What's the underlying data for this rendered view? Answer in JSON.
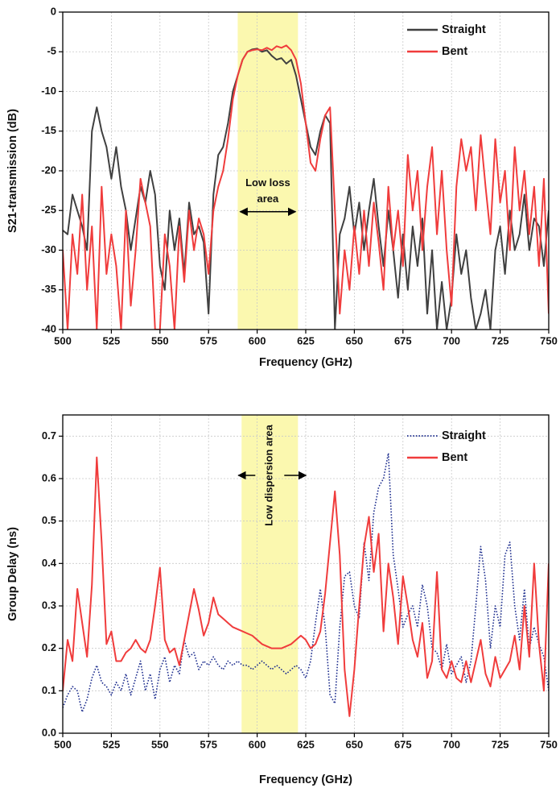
{
  "chart_data": [
    {
      "type": "line",
      "ylabel": "S21-transmission (dB)",
      "xlabel": "Frequency (GHz)",
      "x": [
        500,
        502.5,
        505,
        507.5,
        510,
        512.5,
        515,
        517.5,
        520,
        522.5,
        525,
        527.5,
        530,
        532.5,
        535,
        537.5,
        540,
        542.5,
        545,
        547.5,
        550,
        552.5,
        555,
        557.5,
        560,
        562.5,
        565,
        567.5,
        570,
        572.5,
        575,
        577.5,
        580,
        582.5,
        585,
        587.5,
        590,
        592.5,
        595,
        597.5,
        600,
        602.5,
        605,
        607.5,
        610,
        612.5,
        615,
        617.5,
        620,
        622.5,
        625,
        627.5,
        630,
        632.5,
        635,
        637.5,
        640,
        642.5,
        645,
        647.5,
        650,
        652.5,
        655,
        657.5,
        660,
        662.5,
        665,
        667.5,
        670,
        672.5,
        675,
        677.5,
        680,
        682.5,
        685,
        687.5,
        690,
        692.5,
        695,
        697.5,
        700,
        702.5,
        705,
        707.5,
        710,
        712.5,
        715,
        717.5,
        720,
        722.5,
        725,
        727.5,
        730,
        732.5,
        735,
        737.5,
        740,
        742.5,
        745,
        747.5,
        750
      ],
      "series": [
        {
          "name": "Straight",
          "color": "#404040",
          "dash": "solid",
          "values": [
            -27.5,
            -28,
            -23,
            -25,
            -27,
            -30,
            -15,
            -12,
            -15,
            -17,
            -21,
            -17,
            -22,
            -25,
            -30,
            -26,
            -22,
            -24,
            -20,
            -23,
            -32,
            -35,
            -25,
            -30,
            -26,
            -33,
            -24,
            -28,
            -27,
            -29,
            -38,
            -23,
            -18,
            -17,
            -14,
            -10,
            -8,
            -6,
            -5,
            -4.7,
            -4.6,
            -5,
            -4.8,
            -5.5,
            -6,
            -5.8,
            -6.5,
            -6,
            -8,
            -11,
            -14,
            -17,
            -18,
            -15,
            -13,
            -14,
            -40,
            -28,
            -26,
            -22,
            -28,
            -24,
            -30,
            -25,
            -21,
            -27,
            -32,
            -25,
            -30,
            -36,
            -28,
            -35,
            -27,
            -32,
            -26,
            -38,
            -30,
            -40,
            -34,
            -40,
            -36,
            -28,
            -33,
            -30,
            -36,
            -40,
            -38,
            -35,
            -40,
            -30,
            -27,
            -33,
            -25,
            -30,
            -28,
            -23,
            -30,
            -26,
            -27,
            -32,
            -25
          ]
        },
        {
          "name": "Bent",
          "color": "#f03c3c",
          "dash": "solid",
          "values": [
            -30,
            -40,
            -28,
            -33,
            -23,
            -35,
            -27,
            -40,
            -22,
            -33,
            -28,
            -32,
            -40,
            -25,
            -37,
            -30,
            -21,
            -24,
            -27,
            -40,
            -40,
            -28,
            -32,
            -40,
            -27,
            -34,
            -25,
            -30,
            -26,
            -28,
            -33,
            -25,
            -22,
            -20,
            -16,
            -11,
            -8,
            -6,
            -5,
            -4.8,
            -4.7,
            -4.8,
            -4.5,
            -4.8,
            -4.3,
            -4.5,
            -4.2,
            -4.8,
            -6,
            -9,
            -14,
            -19,
            -20,
            -16,
            -13,
            -12,
            -25,
            -38,
            -30,
            -35,
            -27,
            -33,
            -25,
            -32,
            -24,
            -29,
            -35,
            -22,
            -30,
            -25,
            -32,
            -18,
            -25,
            -20,
            -30,
            -22,
            -17,
            -28,
            -20,
            -30,
            -37,
            -22,
            -16,
            -20,
            -17,
            -25,
            -15.5,
            -22,
            -28,
            -16,
            -24,
            -20,
            -30,
            -17,
            -25,
            -20,
            -28,
            -22,
            -32,
            -21,
            -38
          ]
        }
      ],
      "xlim": [
        500,
        750
      ],
      "xticks": [
        500,
        525,
        550,
        575,
        600,
        625,
        650,
        675,
        700,
        725,
        750
      ],
      "ylim": [
        -40,
        0
      ],
      "yticks": [
        0,
        -5,
        -10,
        -15,
        -20,
        -25,
        -30,
        -35,
        -40
      ],
      "grid": true,
      "legend": "upper right",
      "highlight": [
        590,
        621
      ],
      "highlight_color": "#fbf7a6",
      "annotation": [
        "Low loss",
        "area"
      ],
      "annotation_orientation": "horizontal"
    },
    {
      "type": "line",
      "ylabel": "Group Delay (ns)",
      "xlabel": "Frequency (GHz)",
      "x": [
        500,
        502.5,
        505,
        507.5,
        510,
        512.5,
        515,
        517.5,
        520,
        522.5,
        525,
        527.5,
        530,
        532.5,
        535,
        537.5,
        540,
        542.5,
        545,
        547.5,
        550,
        552.5,
        555,
        557.5,
        560,
        562.5,
        565,
        567.5,
        570,
        572.5,
        575,
        577.5,
        580,
        582.5,
        585,
        587.5,
        590,
        592.5,
        595,
        597.5,
        600,
        602.5,
        605,
        607.5,
        610,
        612.5,
        615,
        617.5,
        620,
        622.5,
        625,
        627.5,
        630,
        632.5,
        635,
        637.5,
        640,
        642.5,
        645,
        647.5,
        650,
        652.5,
        655,
        657.5,
        660,
        662.5,
        665,
        667.5,
        670,
        672.5,
        675,
        677.5,
        680,
        682.5,
        685,
        687.5,
        690,
        692.5,
        695,
        697.5,
        700,
        702.5,
        705,
        707.5,
        710,
        712.5,
        715,
        717.5,
        720,
        722.5,
        725,
        727.5,
        730,
        732.5,
        735,
        737.5,
        740,
        742.5,
        745,
        747.5,
        750
      ],
      "series": [
        {
          "name": "Straight",
          "color": "#1f2f8f",
          "dash": "dotted",
          "values": [
            0.06,
            0.09,
            0.11,
            0.1,
            0.05,
            0.08,
            0.13,
            0.16,
            0.12,
            0.11,
            0.09,
            0.12,
            0.1,
            0.14,
            0.09,
            0.13,
            0.17,
            0.1,
            0.14,
            0.08,
            0.15,
            0.18,
            0.12,
            0.16,
            0.14,
            0.22,
            0.18,
            0.19,
            0.15,
            0.17,
            0.16,
            0.18,
            0.16,
            0.15,
            0.17,
            0.16,
            0.17,
            0.16,
            0.16,
            0.15,
            0.16,
            0.17,
            0.16,
            0.15,
            0.16,
            0.15,
            0.14,
            0.15,
            0.16,
            0.15,
            0.13,
            0.17,
            0.26,
            0.34,
            0.25,
            0.09,
            0.07,
            0.25,
            0.37,
            0.38,
            0.3,
            0.27,
            0.45,
            0.36,
            0.52,
            0.58,
            0.6,
            0.66,
            0.42,
            0.34,
            0.25,
            0.28,
            0.3,
            0.25,
            0.35,
            0.3,
            0.2,
            0.19,
            0.15,
            0.21,
            0.14,
            0.16,
            0.18,
            0.12,
            0.17,
            0.3,
            0.44,
            0.36,
            0.2,
            0.3,
            0.25,
            0.42,
            0.45,
            0.3,
            0.22,
            0.34,
            0.2,
            0.25,
            0.21,
            0.18,
            0.1
          ]
        },
        {
          "name": "Bent",
          "color": "#f03c3c",
          "dash": "solid",
          "values": [
            0.1,
            0.22,
            0.17,
            0.34,
            0.26,
            0.18,
            0.35,
            0.65,
            0.45,
            0.21,
            0.24,
            0.17,
            0.17,
            0.19,
            0.2,
            0.22,
            0.2,
            0.19,
            0.22,
            0.3,
            0.39,
            0.22,
            0.19,
            0.2,
            0.16,
            0.22,
            0.28,
            0.34,
            0.29,
            0.23,
            0.26,
            0.32,
            0.28,
            0.27,
            0.26,
            0.25,
            0.245,
            0.24,
            0.235,
            0.23,
            0.22,
            0.21,
            0.205,
            0.2,
            0.2,
            0.2,
            0.205,
            0.21,
            0.22,
            0.23,
            0.22,
            0.2,
            0.21,
            0.24,
            0.33,
            0.45,
            0.57,
            0.42,
            0.15,
            0.04,
            0.15,
            0.3,
            0.44,
            0.51,
            0.38,
            0.47,
            0.24,
            0.4,
            0.32,
            0.21,
            0.37,
            0.3,
            0.22,
            0.18,
            0.26,
            0.13,
            0.17,
            0.38,
            0.15,
            0.13,
            0.17,
            0.13,
            0.12,
            0.17,
            0.12,
            0.17,
            0.22,
            0.14,
            0.11,
            0.18,
            0.13,
            0.15,
            0.17,
            0.23,
            0.15,
            0.3,
            0.18,
            0.4,
            0.21,
            0.1,
            0.4
          ]
        }
      ],
      "xlim": [
        500,
        750
      ],
      "xticks": [
        500,
        525,
        550,
        575,
        600,
        625,
        650,
        675,
        700,
        725,
        750
      ],
      "ylim": [
        0,
        0.75
      ],
      "yticks": [
        {
          "value": 0,
          "label": "0.0"
        },
        0.1,
        0.2,
        0.3,
        0.4,
        0.5,
        0.6,
        0.7
      ],
      "grid": true,
      "legend": "upper right",
      "highlight": [
        592,
        621
      ],
      "highlight_color": "#fbf7a6",
      "annotation": [
        "Low dispersion area"
      ],
      "annotation_orientation": "vertical"
    }
  ]
}
